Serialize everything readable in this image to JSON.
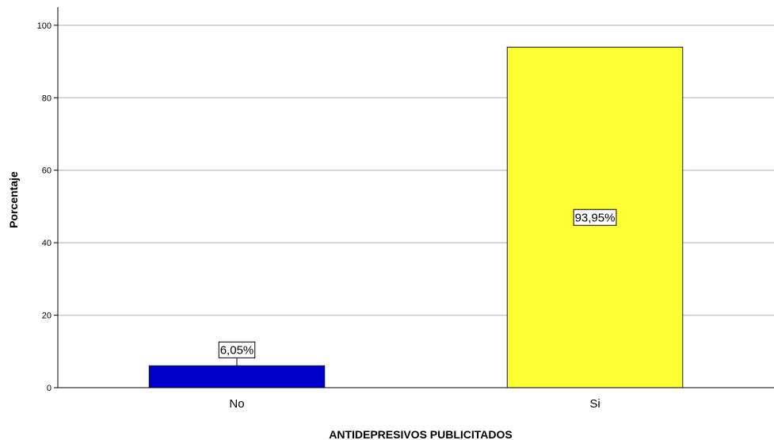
{
  "chart_data": {
    "type": "bar",
    "categories": [
      "No",
      "Si"
    ],
    "values": [
      6.05,
      93.95
    ],
    "data_labels": [
      "6,05%",
      "93,95%"
    ],
    "colors": [
      "#0000CC",
      "#FFFF33"
    ],
    "xlabel": "ANTIDEPRESIVOS PUBLICITADOS",
    "ylabel": "Porcentaje",
    "ylim": [
      0,
      105
    ],
    "yticks": [
      0,
      20,
      40,
      60,
      80,
      100
    ],
    "grid": true,
    "legend": "none"
  }
}
